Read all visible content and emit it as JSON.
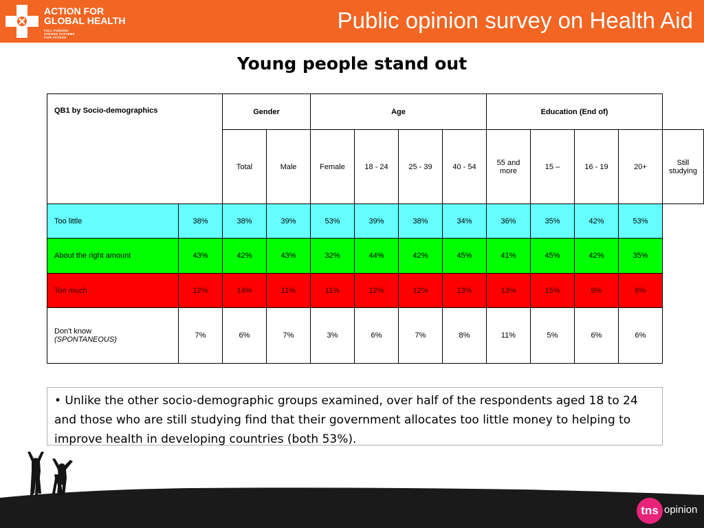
{
  "header": {
    "logo_line1": "ACTION FOR",
    "logo_line2": "GLOBAL HEALTH",
    "logo_sub": [
      "FULL FUNDING",
      "STRONG SYSTEMS",
      "FAIR ACCESS"
    ],
    "title": "Public opinion survey on Health Aid"
  },
  "slide_title": "Young people stand out",
  "table": {
    "question_label": "QB1 by Socio-demographics",
    "groups": {
      "gender": "Gender",
      "age": "Age",
      "education": "Education (End of)"
    },
    "columns": [
      "Total",
      "Male",
      "Female",
      "18 - 24",
      "25 - 39",
      "40 - 54",
      "55 and more",
      "15 –",
      "16 - 19",
      "20+",
      "Still studying"
    ],
    "rows": [
      {
        "label": "Too little",
        "values": [
          "38%",
          "38%",
          "39%",
          "53%",
          "39%",
          "38%",
          "34%",
          "36%",
          "35%",
          "42%",
          "53%"
        ]
      },
      {
        "label": "About the right amount",
        "values": [
          "43%",
          "42%",
          "43%",
          "32%",
          "44%",
          "42%",
          "45%",
          "41%",
          "45%",
          "42%",
          "35%"
        ]
      },
      {
        "label": "Too much",
        "values": [
          "12%",
          "14%",
          "11%",
          "11%",
          "12%",
          "12%",
          "13%",
          "13%",
          "15%",
          "9%",
          "6%"
        ]
      },
      {
        "label": "Don't know",
        "label_sub": "(SPONTANEOUS)",
        "values": [
          "7%",
          "6%",
          "7%",
          "3%",
          "6%",
          "7%",
          "8%",
          "11%",
          "5%",
          "6%",
          "6%"
        ]
      }
    ],
    "row_colors": {
      "too_little": "#66ffff",
      "right_amount": "#00ff00",
      "too_much": "#ff0000"
    }
  },
  "note": "• Unlike the other socio-demographic groups examined, over half of the respondents aged 18 to 24 and those who are still studying find that their government allocates too little money to helping to improve health in developing countries (both 53%).",
  "footer": {
    "brand_circle": "tns",
    "brand_text": "opinion"
  },
  "colors": {
    "header": "#f26522",
    "brand": "#e8247a"
  }
}
